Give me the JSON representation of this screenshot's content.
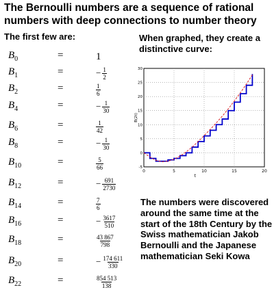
{
  "title": "The Bernoulli numbers are a sequence of rational numbers with deep connections to number theory",
  "left_caption": "The first few are:",
  "right_caption": "When graphed, they create a distinctive curve:",
  "bottom_text": "The numbers were discovered around the same time at the start of the 18th Century by the Swiss mathematician Jakob Bernoulli and the Japanese mathematician Seki Kowa",
  "equals_symbol": "=",
  "numbers": [
    {
      "symbol": "B",
      "index": "0",
      "sign": "",
      "whole": "1",
      "num": "",
      "den": ""
    },
    {
      "symbol": "B",
      "index": "1",
      "sign": "−",
      "whole": "",
      "num": "1",
      "den": "2"
    },
    {
      "symbol": "B",
      "index": "2",
      "sign": "",
      "whole": "",
      "num": "1",
      "den": "6"
    },
    {
      "symbol": "B",
      "index": "4",
      "sign": "−",
      "whole": "",
      "num": "1",
      "den": "30"
    },
    {
      "symbol": "B",
      "index": "6",
      "sign": "",
      "whole": "",
      "num": "1",
      "den": "42"
    },
    {
      "symbol": "B",
      "index": "8",
      "sign": "−",
      "whole": "",
      "num": "1",
      "den": "30"
    },
    {
      "symbol": "B",
      "index": "10",
      "sign": "",
      "whole": "",
      "num": "5",
      "den": "66"
    },
    {
      "symbol": "B",
      "index": "12",
      "sign": "−",
      "whole": "",
      "num": "691",
      "den": "2730"
    },
    {
      "symbol": "B",
      "index": "14",
      "sign": "",
      "whole": "",
      "num": "7",
      "den": "6"
    },
    {
      "symbol": "B",
      "index": "16",
      "sign": "−",
      "whole": "",
      "num": "3617",
      "den": "510"
    },
    {
      "symbol": "B",
      "index": "18",
      "sign": "",
      "whole": "",
      "num": "43 867",
      "den": "798"
    },
    {
      "symbol": "B",
      "index": "20",
      "sign": "−",
      "whole": "",
      "num": "174 611",
      "den": "330"
    },
    {
      "symbol": "B",
      "index": "22",
      "sign": "",
      "whole": "",
      "num": "854 513",
      "den": "138"
    }
  ],
  "chart_data": {
    "type": "line",
    "xlabel": "t",
    "ylabel": "B(2t)",
    "xlim": [
      0,
      20
    ],
    "ylim": [
      -5,
      30
    ],
    "xticks": [
      "0",
      "5",
      "10",
      "15",
      "20"
    ],
    "yticks": [
      "-5",
      "0",
      "5",
      "10",
      "15",
      "20",
      "25",
      "30"
    ],
    "grid": true,
    "colors": {
      "step": "#0000cc",
      "curve": "#dd2222",
      "grid": "#888888"
    },
    "series": [
      {
        "style": "step",
        "x": [
          0,
          1,
          2,
          3,
          4,
          5,
          6,
          7,
          8,
          9,
          10,
          11,
          12,
          13,
          14,
          15,
          16,
          17,
          18
        ],
        "y": [
          0,
          -2,
          -3,
          -3,
          -2.5,
          -2,
          -1,
          0,
          2,
          4,
          6,
          8,
          10,
          12,
          15,
          18,
          21,
          24,
          28
        ]
      },
      {
        "style": "dashed",
        "x": [
          0,
          1,
          2,
          3,
          4,
          5,
          6,
          7,
          8,
          9,
          10,
          11,
          12,
          13,
          14,
          15,
          16,
          17,
          18
        ],
        "y": [
          0,
          -1.5,
          -2.7,
          -3.2,
          -3,
          -2.3,
          -1.2,
          0.3,
          2,
          4,
          6.1,
          8.3,
          10.6,
          13,
          15.6,
          18.4,
          21.3,
          24.4,
          27.7
        ]
      }
    ]
  }
}
